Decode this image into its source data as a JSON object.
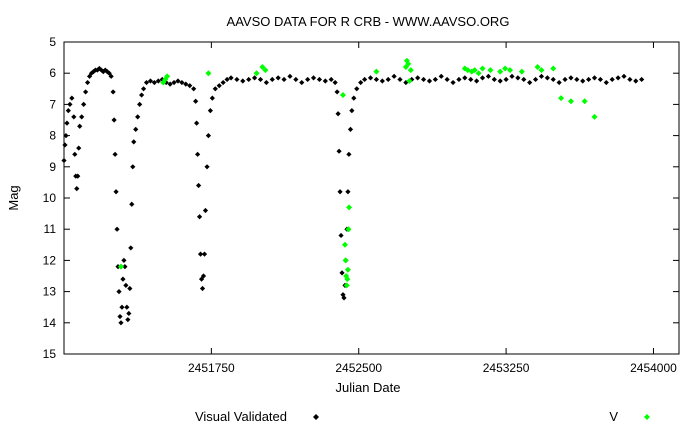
{
  "chart_data": {
    "type": "scatter",
    "title": "AAVSO DATA FOR R CRB - WWW.AAVSO.ORG",
    "xlabel": "Julian Date",
    "ylabel": "Mag",
    "xlim": [
      2451000,
      2454130
    ],
    "ylim": [
      5,
      15
    ],
    "y_inverted": true,
    "grid": false,
    "legend_position": "bottom",
    "x_ticks": [
      {
        "value": 2451750,
        "label": "2451750"
      },
      {
        "value": 2452500,
        "label": "2452500"
      },
      {
        "value": 2453250,
        "label": "2453250"
      },
      {
        "value": 2454000,
        "label": "2454000"
      }
    ],
    "y_ticks": [
      {
        "value": 5,
        "label": "5"
      },
      {
        "value": 6,
        "label": "6"
      },
      {
        "value": 7,
        "label": "7"
      },
      {
        "value": 8,
        "label": "8"
      },
      {
        "value": 9,
        "label": "9"
      },
      {
        "value": 10,
        "label": "10"
      },
      {
        "value": 11,
        "label": "11"
      },
      {
        "value": 12,
        "label": "12"
      },
      {
        "value": 13,
        "label": "13"
      },
      {
        "value": 14,
        "label": "14"
      },
      {
        "value": 15,
        "label": "15"
      }
    ],
    "series": [
      {
        "name": "Visual Validated",
        "color": "#000000",
        "marker": "diamond",
        "points": [
          [
            2451000,
            8.8
          ],
          [
            2451005,
            8.3
          ],
          [
            2451010,
            8.0
          ],
          [
            2451015,
            7.6
          ],
          [
            2451022,
            7.2
          ],
          [
            2451030,
            7.0
          ],
          [
            2451040,
            6.8
          ],
          [
            2451050,
            7.4
          ],
          [
            2451055,
            8.6
          ],
          [
            2451060,
            9.3
          ],
          [
            2451065,
            9.7
          ],
          [
            2451070,
            9.3
          ],
          [
            2451075,
            8.4
          ],
          [
            2451080,
            7.7
          ],
          [
            2451090,
            7.4
          ],
          [
            2451100,
            7.0
          ],
          [
            2451110,
            6.6
          ],
          [
            2451120,
            6.3
          ],
          [
            2451130,
            6.1
          ],
          [
            2451140,
            6.0
          ],
          [
            2451150,
            5.95
          ],
          [
            2451160,
            5.9
          ],
          [
            2451170,
            5.9
          ],
          [
            2451180,
            5.85
          ],
          [
            2451190,
            5.9
          ],
          [
            2451200,
            5.95
          ],
          [
            2451210,
            5.9
          ],
          [
            2451220,
            5.95
          ],
          [
            2451230,
            6.0
          ],
          [
            2451240,
            6.1
          ],
          [
            2451250,
            6.6
          ],
          [
            2451255,
            7.5
          ],
          [
            2451260,
            8.6
          ],
          [
            2451265,
            9.8
          ],
          [
            2451270,
            11.0
          ],
          [
            2451275,
            12.2
          ],
          [
            2451280,
            13.0
          ],
          [
            2451285,
            13.8
          ],
          [
            2451290,
            14.0
          ],
          [
            2451295,
            13.5
          ],
          [
            2451300,
            12.6
          ],
          [
            2451305,
            12.0
          ],
          [
            2451310,
            12.2
          ],
          [
            2451315,
            12.8
          ],
          [
            2451320,
            13.5
          ],
          [
            2451325,
            13.9
          ],
          [
            2451330,
            13.7
          ],
          [
            2451335,
            12.9
          ],
          [
            2451340,
            11.6
          ],
          [
            2451345,
            10.2
          ],
          [
            2451350,
            9.0
          ],
          [
            2451355,
            8.2
          ],
          [
            2451365,
            7.8
          ],
          [
            2451375,
            7.4
          ],
          [
            2451385,
            7.0
          ],
          [
            2451395,
            6.7
          ],
          [
            2451405,
            6.5
          ],
          [
            2451420,
            6.3
          ],
          [
            2451440,
            6.25
          ],
          [
            2451460,
            6.3
          ],
          [
            2451480,
            6.25
          ],
          [
            2451500,
            6.2
          ],
          [
            2451520,
            6.3
          ],
          [
            2451540,
            6.35
          ],
          [
            2451560,
            6.3
          ],
          [
            2451580,
            6.25
          ],
          [
            2451600,
            6.3
          ],
          [
            2451620,
            6.35
          ],
          [
            2451640,
            6.4
          ],
          [
            2451660,
            6.5
          ],
          [
            2451670,
            6.9
          ],
          [
            2451675,
            7.6
          ],
          [
            2451680,
            8.6
          ],
          [
            2451685,
            9.6
          ],
          [
            2451690,
            10.6
          ],
          [
            2451695,
            11.8
          ],
          [
            2451700,
            12.6
          ],
          [
            2451705,
            12.9
          ],
          [
            2451710,
            12.5
          ],
          [
            2451715,
            11.8
          ],
          [
            2451720,
            10.4
          ],
          [
            2451728,
            9.0
          ],
          [
            2451735,
            8.0
          ],
          [
            2451745,
            7.2
          ],
          [
            2451755,
            6.8
          ],
          [
            2451770,
            6.5
          ],
          [
            2451790,
            6.4
          ],
          [
            2451810,
            6.3
          ],
          [
            2451830,
            6.2
          ],
          [
            2451850,
            6.15
          ],
          [
            2451880,
            6.2
          ],
          [
            2451910,
            6.25
          ],
          [
            2451940,
            6.2
          ],
          [
            2451970,
            6.15
          ],
          [
            2452000,
            6.2
          ],
          [
            2452030,
            6.3
          ],
          [
            2452060,
            6.2
          ],
          [
            2452090,
            6.15
          ],
          [
            2452120,
            6.2
          ],
          [
            2452150,
            6.1
          ],
          [
            2452180,
            6.2
          ],
          [
            2452210,
            6.3
          ],
          [
            2452240,
            6.2
          ],
          [
            2452270,
            6.15
          ],
          [
            2452300,
            6.2
          ],
          [
            2452330,
            6.25
          ],
          [
            2452360,
            6.2
          ],
          [
            2452380,
            6.3
          ],
          [
            2452390,
            6.6
          ],
          [
            2452395,
            7.3
          ],
          [
            2452400,
            8.5
          ],
          [
            2452405,
            9.8
          ],
          [
            2452410,
            11.2
          ],
          [
            2452415,
            12.4
          ],
          [
            2452420,
            13.1
          ],
          [
            2452425,
            13.2
          ],
          [
            2452430,
            12.8
          ],
          [
            2452435,
            12.0
          ],
          [
            2452440,
            11.0
          ],
          [
            2452445,
            9.8
          ],
          [
            2452450,
            8.6
          ],
          [
            2452458,
            7.8
          ],
          [
            2452465,
            7.2
          ],
          [
            2452475,
            6.8
          ],
          [
            2452490,
            6.5
          ],
          [
            2452510,
            6.3
          ],
          [
            2452530,
            6.2
          ],
          [
            2452560,
            6.15
          ],
          [
            2452590,
            6.2
          ],
          [
            2452620,
            6.25
          ],
          [
            2452650,
            6.2
          ],
          [
            2452680,
            6.1
          ],
          [
            2452710,
            6.2
          ],
          [
            2452740,
            6.3
          ],
          [
            2452770,
            6.2
          ],
          [
            2452800,
            6.15
          ],
          [
            2452830,
            6.2
          ],
          [
            2452860,
            6.25
          ],
          [
            2452890,
            6.2
          ],
          [
            2452920,
            6.1
          ],
          [
            2452950,
            6.2
          ],
          [
            2452980,
            6.3
          ],
          [
            2453010,
            6.2
          ],
          [
            2453040,
            6.15
          ],
          [
            2453070,
            6.2
          ],
          [
            2453100,
            6.25
          ],
          [
            2453130,
            6.15
          ],
          [
            2453160,
            6.1
          ],
          [
            2453190,
            6.2
          ],
          [
            2453220,
            6.25
          ],
          [
            2453250,
            6.2
          ],
          [
            2453280,
            6.1
          ],
          [
            2453310,
            6.15
          ],
          [
            2453340,
            6.2
          ],
          [
            2453370,
            6.3
          ],
          [
            2453400,
            6.2
          ],
          [
            2453430,
            6.1
          ],
          [
            2453460,
            6.15
          ],
          [
            2453490,
            6.2
          ],
          [
            2453520,
            6.3
          ],
          [
            2453550,
            6.2
          ],
          [
            2453580,
            6.15
          ],
          [
            2453610,
            6.2
          ],
          [
            2453640,
            6.25
          ],
          [
            2453670,
            6.2
          ],
          [
            2453700,
            6.15
          ],
          [
            2453730,
            6.2
          ],
          [
            2453760,
            6.3
          ],
          [
            2453790,
            6.2
          ],
          [
            2453820,
            6.15
          ],
          [
            2453850,
            6.1
          ],
          [
            2453880,
            6.2
          ],
          [
            2453910,
            6.25
          ],
          [
            2453940,
            6.2
          ]
        ]
      },
      {
        "name": "V",
        "color": "#00ff00",
        "marker": "diamond",
        "points": [
          [
            2451290,
            12.2
          ],
          [
            2451505,
            6.3
          ],
          [
            2451515,
            6.2
          ],
          [
            2451525,
            6.1
          ],
          [
            2451735,
            6.0
          ],
          [
            2451980,
            6.0
          ],
          [
            2452010,
            5.8
          ],
          [
            2452025,
            5.9
          ],
          [
            2452420,
            6.7
          ],
          [
            2452430,
            11.5
          ],
          [
            2452433,
            12.0
          ],
          [
            2452436,
            12.5
          ],
          [
            2452439,
            12.8
          ],
          [
            2452442,
            12.6
          ],
          [
            2452445,
            12.3
          ],
          [
            2452448,
            11.0
          ],
          [
            2452451,
            10.3
          ],
          [
            2452590,
            5.95
          ],
          [
            2452740,
            5.8
          ],
          [
            2452745,
            5.6
          ],
          [
            2452752,
            5.7
          ],
          [
            2452758,
            6.25
          ],
          [
            2452765,
            5.9
          ],
          [
            2453040,
            5.85
          ],
          [
            2453055,
            5.9
          ],
          [
            2453075,
            5.95
          ],
          [
            2453090,
            5.9
          ],
          [
            2453110,
            6.0
          ],
          [
            2453130,
            5.85
          ],
          [
            2453170,
            5.9
          ],
          [
            2453220,
            5.95
          ],
          [
            2453245,
            5.85
          ],
          [
            2453270,
            5.9
          ],
          [
            2453330,
            5.95
          ],
          [
            2453410,
            5.8
          ],
          [
            2453430,
            5.9
          ],
          [
            2453490,
            5.85
          ],
          [
            2453530,
            6.8
          ],
          [
            2453580,
            6.9
          ],
          [
            2453650,
            6.9
          ],
          [
            2453700,
            7.4
          ]
        ]
      }
    ]
  }
}
